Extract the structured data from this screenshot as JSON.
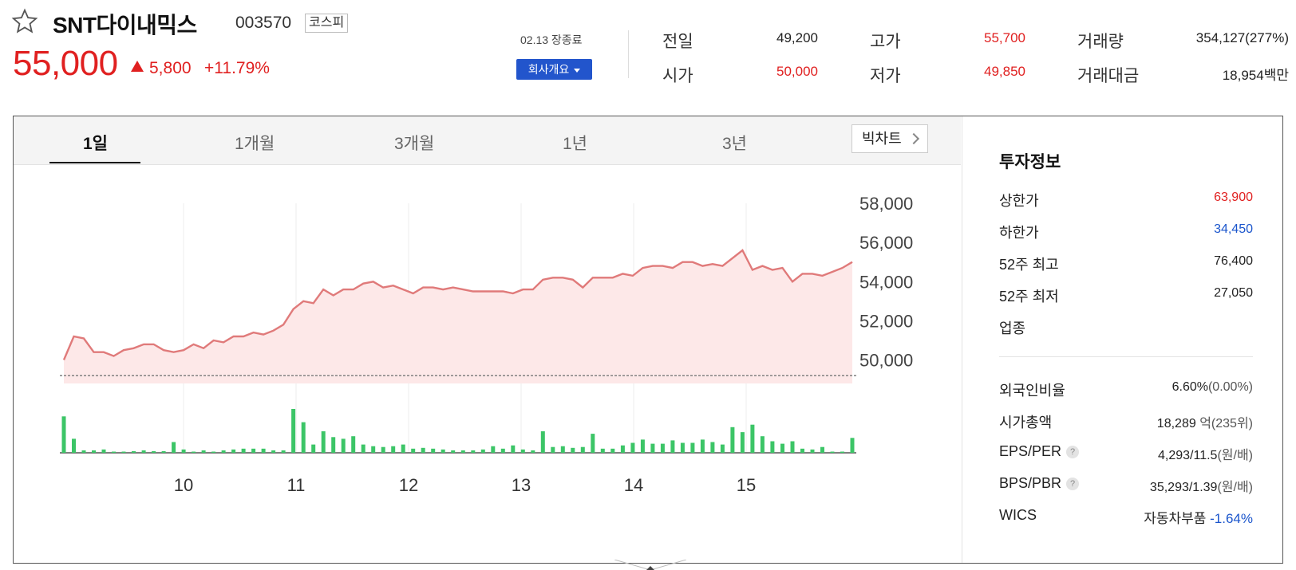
{
  "header": {
    "star_icon": "star-outline-icon",
    "name": "SNT다이내믹스",
    "code": "003570",
    "market": "코스피",
    "price": "55,000",
    "change_direction": "up-triangle-icon",
    "change_amount": "5,800",
    "change_rate": "+11.79%",
    "date_status": "02.13 장종료",
    "company_button": "회사개요"
  },
  "quote": {
    "prev_close_label": "전일",
    "prev_close": "49,200",
    "open_label": "시가",
    "open": "50,000",
    "high_label": "고가",
    "high": "55,700",
    "low_label": "저가",
    "low": "49,850",
    "volume_label": "거래량",
    "volume": "354,127(277%)",
    "amount_label": "거래대금",
    "amount": "18,954백만"
  },
  "tabs": {
    "d1": "1일",
    "m1": "1개월",
    "m3": "3개월",
    "y1": "1년",
    "y3": "3년",
    "bigchart": "빅차트"
  },
  "invest": {
    "title": "투자정보",
    "upper_label": "상한가",
    "upper": "63,900",
    "lower_label": "하한가",
    "lower": "34,450",
    "high52_label": "52주 최고",
    "high52": "76,400",
    "low52_label": "52주 최저",
    "low52": "27,050",
    "sector_label": "업종",
    "foreign_label": "외국인비율",
    "foreign": "6.60%",
    "foreign_chg": "(0.00%)",
    "mktcap_label": "시가총액",
    "mktcap": "18,289",
    "mktcap_unit": "억",
    "mktcap_rank": "(235위)",
    "eps_label": "EPS/PER",
    "eps": "4,293/11.5",
    "eps_unit": "(원/배)",
    "bps_label": "BPS/PBR",
    "bps": "35,293/1.39",
    "bps_unit": "(원/배)",
    "wics_label": "WICS",
    "wics": "자동차부품",
    "wics_chg": "-1.64%",
    "help_glyph": "?"
  },
  "colors": {
    "up": "#e02020",
    "down": "#1a55cc",
    "line": "#e07a7a",
    "area": "#fde8e8",
    "volume": "#3cc567"
  },
  "chart_data": {
    "type": "line",
    "x_ticks": [
      "10",
      "11",
      "12",
      "13",
      "14",
      "15"
    ],
    "y_ticks": [
      "58,000",
      "56,000",
      "54,000",
      "52,000",
      "50,000"
    ],
    "ylim": [
      48800,
      58000
    ],
    "prev_close": 49200,
    "price": [
      50000,
      51200,
      51100,
      50400,
      50400,
      50200,
      50500,
      50600,
      50800,
      50800,
      50500,
      50400,
      50500,
      50800,
      50600,
      51000,
      50900,
      51200,
      51200,
      51400,
      51300,
      51500,
      51800,
      52600,
      53000,
      52900,
      53600,
      53300,
      53600,
      53600,
      53900,
      54000,
      53700,
      53800,
      53600,
      53400,
      53700,
      53700,
      53600,
      53700,
      53600,
      53500,
      53500,
      53500,
      53500,
      53400,
      53600,
      53600,
      54100,
      54200,
      54200,
      54100,
      53700,
      54200,
      54200,
      54200,
      54400,
      54300,
      54700,
      54800,
      54800,
      54700,
      55000,
      55000,
      54800,
      54900,
      54800,
      55200,
      55600,
      54600,
      54800,
      54600,
      54700,
      54000,
      54400,
      54400,
      54300,
      54500,
      54700,
      55000
    ],
    "volume": [
      44,
      17,
      3,
      3,
      4,
      1,
      1,
      2,
      3,
      2,
      2,
      13,
      4,
      1,
      3,
      1,
      3,
      4,
      5,
      5,
      5,
      3,
      3,
      53,
      37,
      10,
      26,
      19,
      17,
      20,
      10,
      8,
      7,
      8,
      10,
      5,
      6,
      5,
      4,
      3,
      3,
      3,
      4,
      8,
      5,
      9,
      4,
      3,
      26,
      7,
      8,
      6,
      7,
      23,
      5,
      5,
      9,
      12,
      16,
      11,
      11,
      15,
      12,
      12,
      16,
      13,
      10,
      31,
      25,
      34,
      20,
      14,
      11,
      14,
      5,
      4,
      7,
      1,
      1,
      18
    ]
  }
}
